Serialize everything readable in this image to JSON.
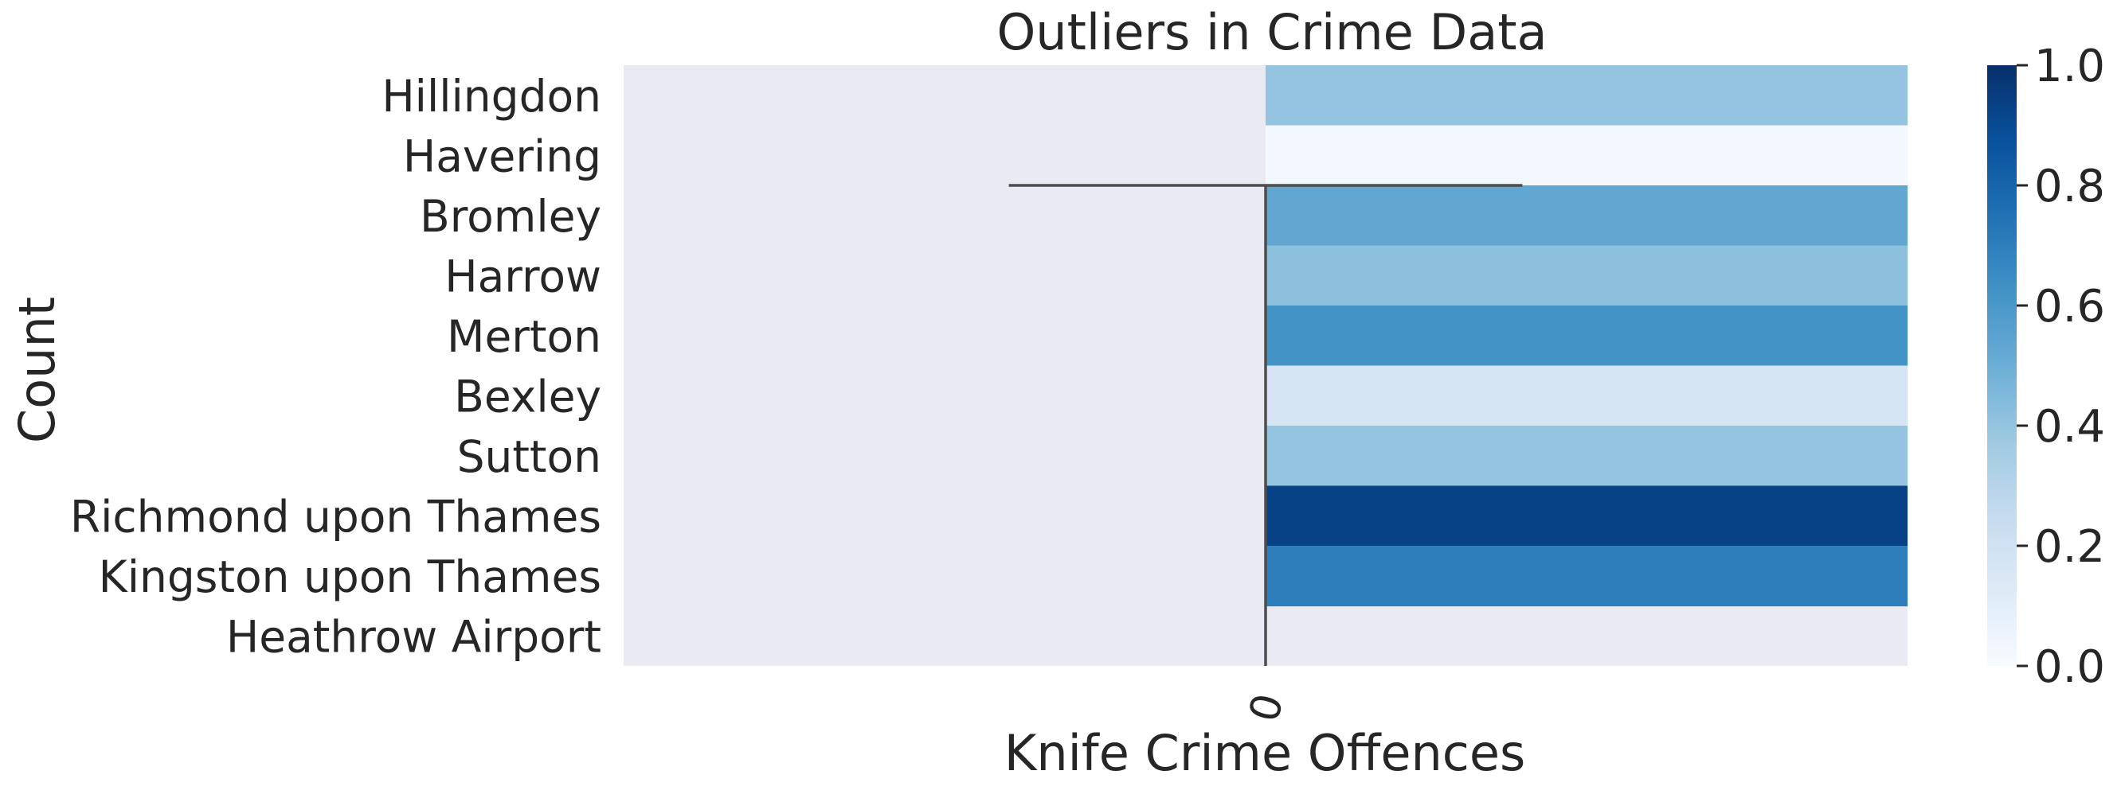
{
  "chart_data": {
    "type": "heatmap",
    "title": "Outliers in Crime Data",
    "xlabel": "Knife Crime Offences",
    "ylabel": "Count",
    "x_tick_labels": [
      "0"
    ],
    "rows": [
      "Hillingdon",
      "Havering",
      "Bromley",
      "Harrow",
      "Merton",
      "Bexley",
      "Sutton",
      "Richmond upon Thames",
      "Kingston upon Thames",
      "Heathrow Airport"
    ],
    "values": [
      0.4,
      0.02,
      0.53,
      0.42,
      0.62,
      0.17,
      0.4,
      0.93,
      0.7,
      null
    ],
    "colormap": "Blues",
    "colorbar": {
      "range": [
        0.0,
        1.0
      ],
      "ticks": [
        "0.0",
        "0.2",
        "0.4",
        "0.6",
        "0.8",
        "1.0"
      ]
    },
    "overlay_lines": {
      "horizontal_at_row_boundary": 2,
      "horizontal_span_fraction": [
        -0.4,
        0.4
      ],
      "vertical_at_x_center": true
    },
    "colors": {
      "missing_background": "#eaeaf2",
      "line": "#4d4d4d",
      "text": "#262626"
    }
  }
}
